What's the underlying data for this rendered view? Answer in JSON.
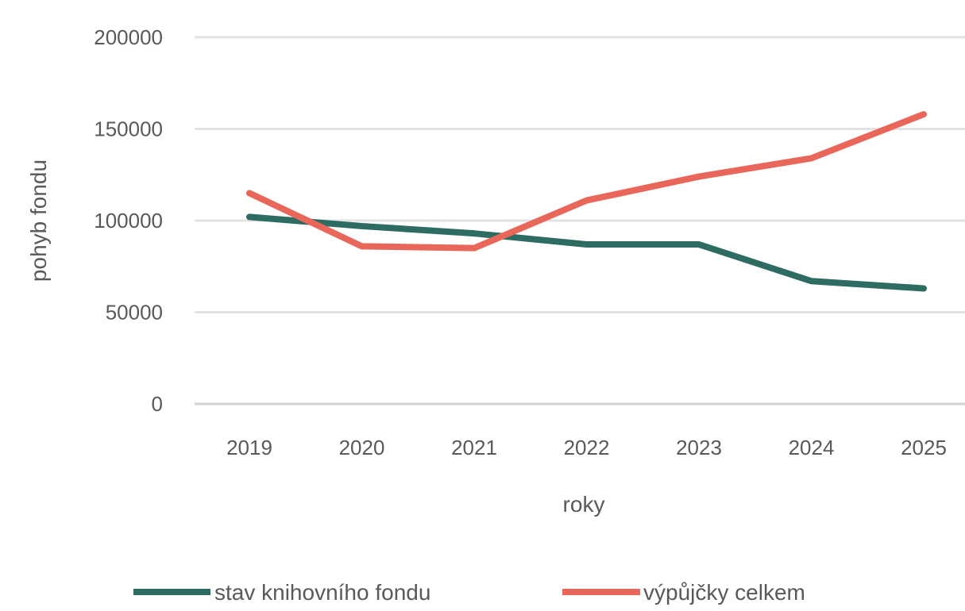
{
  "chart_data": {
    "type": "line",
    "title": "",
    "xlabel": "roky",
    "ylabel": "pohyb fondu",
    "categories": [
      "2019",
      "2020",
      "2021",
      "2022",
      "2023",
      "2024",
      "2025"
    ],
    "ylim": [
      0,
      200000
    ],
    "yticks": [
      "0",
      "50000",
      "100000",
      "150000",
      "200000"
    ],
    "grid": true,
    "legend_position": "bottom",
    "series": [
      {
        "name": "stav knihovního fondu",
        "color": "#2E6B63",
        "values": [
          102000,
          97000,
          93000,
          87000,
          87000,
          67000,
          63000
        ]
      },
      {
        "name": "výpůjčky celkem",
        "color": "#E8675A",
        "values": [
          115000,
          86000,
          85000,
          111000,
          124000,
          134000,
          158000
        ]
      }
    ]
  }
}
